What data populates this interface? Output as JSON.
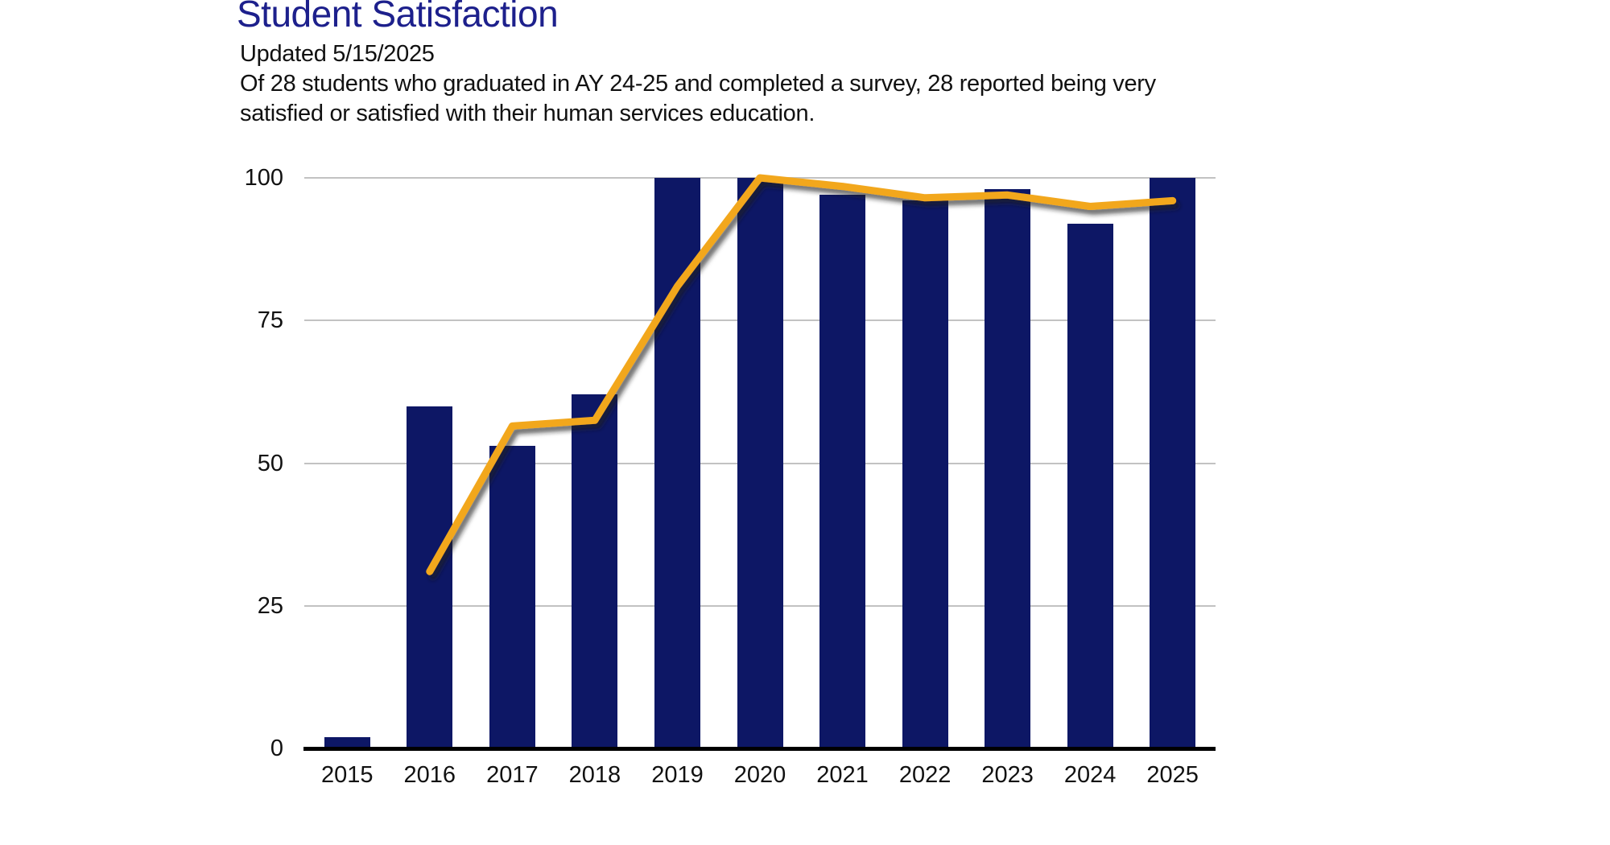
{
  "header": {
    "title": "Student Satisfaction",
    "updated": "Updated 5/15/2025",
    "description": "Of 28 students who graduated in AY 24-25 and completed a survey, 28 reported being very satisfied or satisfied with their human services education.",
    "description_line1": "Of 28 students who graduated in AY 24-25 and completed a survey, 28 reported being very",
    "description_line2": "satisfied or satisfied with their human services education."
  },
  "colors": {
    "title": "#1d208c",
    "bar": "#0d1765",
    "line": "#f2a71f",
    "line_shadow": "#1a1a1a",
    "gridline": "#c2c2c2",
    "axis": "#000000",
    "text": "#111111"
  },
  "chart_data": {
    "type": "bar",
    "title": "Student Satisfaction",
    "xlabel": "",
    "ylabel": "",
    "categories": [
      "2015",
      "2016",
      "2017",
      "2018",
      "2019",
      "2020",
      "2021",
      "2022",
      "2023",
      "2024",
      "2025"
    ],
    "series": [
      {
        "name": "bars",
        "type": "bar",
        "values": [
          2,
          60,
          53,
          62,
          100,
          100,
          97,
          96,
          98,
          92,
          100
        ]
      },
      {
        "name": "line",
        "type": "line",
        "values": [
          null,
          31,
          56.5,
          57.5,
          81,
          100,
          98.5,
          96.5,
          97,
          95,
          96
        ]
      }
    ],
    "yticks": [
      0,
      25,
      50,
      75,
      100
    ],
    "ylim": [
      0,
      100
    ],
    "grid": true,
    "legend": "none"
  }
}
